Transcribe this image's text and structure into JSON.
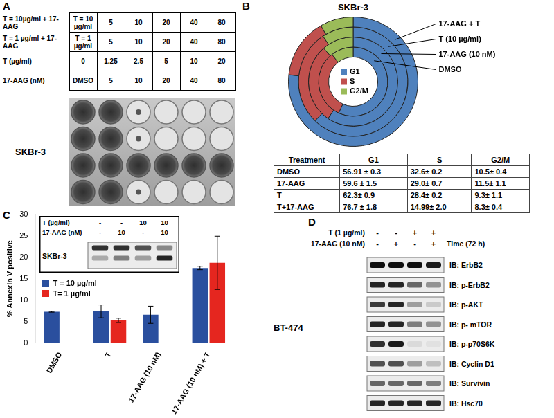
{
  "panel_labels": [
    "A",
    "B",
    "C",
    "D"
  ],
  "panel_a": {
    "rows": [
      {
        "label": "T = 10µg/ml + 17-AAG",
        "cells": [
          "T = 10 µg/ml",
          5,
          10,
          20,
          40,
          80
        ]
      },
      {
        "label": "T = 1 µg/ml + 17-AAG",
        "cells": [
          "T = 1 µg/ml",
          5,
          10,
          20,
          40,
          80
        ]
      },
      {
        "label": "T (µg/ml)",
        "cells": [
          0,
          1.25,
          2.5,
          5,
          10,
          20
        ]
      },
      {
        "label": "17-AAG (nM)",
        "cells": [
          "DMSO",
          5,
          10,
          20,
          40,
          80
        ]
      }
    ],
    "cell_line": "SKBr-3"
  },
  "chart_data": [
    {
      "type": "doughnut",
      "title": "SKBr-3",
      "categories": [
        "G1",
        "S",
        "G2/M"
      ],
      "colors": [
        "#4f81bd",
        "#c0504d",
        "#9bbb59"
      ],
      "legend": "center",
      "series": [
        {
          "name": "17-AAG + T",
          "values": [
            76.7,
            14.99,
            8.3
          ]
        },
        {
          "name": "T (10 µg/ml)",
          "values": [
            62.3,
            28.4,
            9.3
          ]
        },
        {
          "name": "17-AAG (10 nM)",
          "values": [
            59.6,
            29.0,
            11.5
          ]
        },
        {
          "name": "DMSO",
          "values": [
            56.91,
            32.6,
            10.5
          ]
        }
      ]
    },
    {
      "type": "bar",
      "y_label": "% Annexin V positive",
      "categories": [
        "DMSO",
        "T",
        "17-AAG (10 nM)",
        "17-AAG (10 nM) + T"
      ],
      "series": [
        {
          "name": "T = 10 µg/ml",
          "color": "#2a4f9e",
          "values": [
            7.3,
            7.4,
            6.6,
            17.5
          ],
          "errors": [
            0.1,
            1.5,
            2.0,
            0.4
          ]
        },
        {
          "name": "T= 1 µg/ml",
          "color": "#e5261f",
          "values": [
            null,
            5.3,
            null,
            18.7
          ],
          "errors": [
            null,
            0.5,
            null,
            6.2
          ]
        }
      ],
      "ylim": [
        0,
        30
      ],
      "yticks": [
        0,
        5,
        10,
        15,
        20,
        25,
        30
      ],
      "grid": false,
      "legend": "left"
    }
  ],
  "table_b": {
    "header": [
      "Treatment",
      "G1",
      "S",
      "G2/M"
    ],
    "rows": [
      [
        "DMSO",
        "56.91 ± 0.3",
        "32.6± 0.2",
        "10.5± 0.4"
      ],
      [
        "17-AAG",
        "59.6 ± 1.5",
        "29.0± 0.7",
        "11.5± 1.1"
      ],
      [
        "T",
        "62.3± 0.9",
        "28.4± 0.2",
        "9.3± 1.1"
      ],
      [
        "T+17-AAG",
        "76.7 ± 1.8",
        "14.99± 2.0",
        "8.3± 0.4"
      ]
    ]
  },
  "inset_c": {
    "rows": [
      {
        "label": "T (µg/ml)",
        "cells": [
          "-",
          "-",
          10,
          10
        ]
      },
      {
        "label": "17-AAG (nM)",
        "cells": [
          "-",
          10,
          "-",
          10
        ]
      }
    ],
    "cell_line": "SKBr-3"
  },
  "panel_d": {
    "rows": [
      {
        "label": "T (1 µg/ml)",
        "cells": [
          "-",
          "-",
          "+",
          "+"
        ]
      },
      {
        "label": "17-AAG (10 nM)",
        "cells": [
          "-",
          "+",
          "-",
          "+"
        ]
      }
    ],
    "time": "Time (72 h)",
    "cell_line": "BT-474",
    "blots": [
      "IB: ErbB2",
      "IB: p-ErbB2",
      "IB: p-AKT",
      "IB: p- mTOR",
      "IB: p-p70S6K",
      "IB: Cyclin D1",
      "IB: Survivin",
      "IB: Hsc70"
    ]
  }
}
